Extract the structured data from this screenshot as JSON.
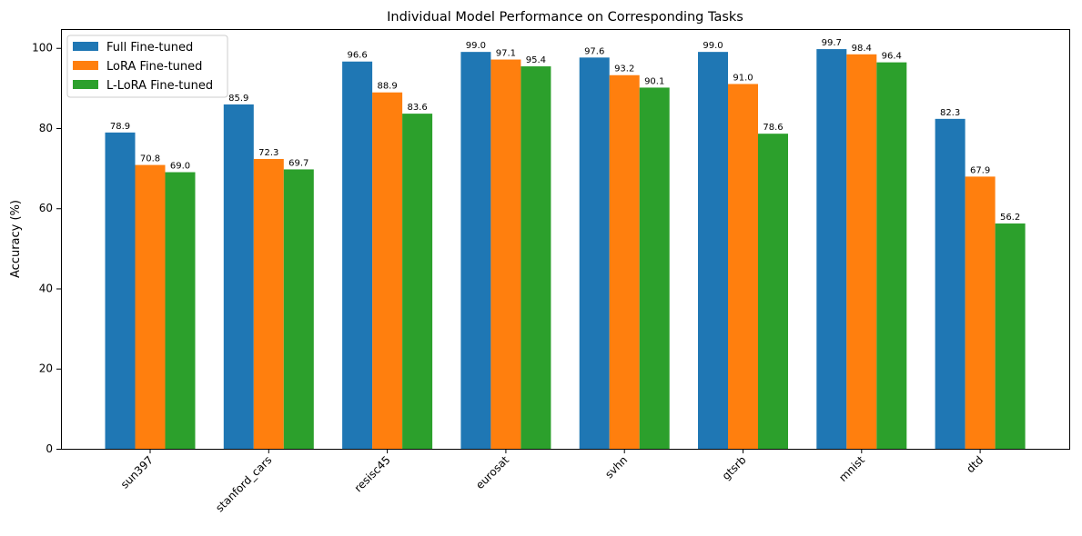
{
  "chart_data": {
    "type": "bar",
    "title": "Individual Model Performance on Corresponding Tasks",
    "xlabel": "",
    "ylabel": "Accuracy (%)",
    "ylim": [
      0,
      104.7
    ],
    "yticks": [
      0,
      20,
      40,
      60,
      80,
      100
    ],
    "grid": false,
    "legend_position": "top-left",
    "categories": [
      "sun397",
      "stanford_cars",
      "resisc45",
      "eurosat",
      "svhn",
      "gtsrb",
      "mnist",
      "dtd"
    ],
    "series": [
      {
        "name": "Full Fine-tuned",
        "color": "#1f77b4",
        "values": [
          78.9,
          85.9,
          96.6,
          99.0,
          97.6,
          99.0,
          99.7,
          82.3
        ]
      },
      {
        "name": "LoRA Fine-tuned",
        "color": "#ff7f0e",
        "values": [
          70.8,
          72.3,
          88.9,
          97.1,
          93.2,
          91.0,
          98.4,
          67.9
        ]
      },
      {
        "name": "L-LoRA Fine-tuned",
        "color": "#2ca02c",
        "values": [
          69.0,
          69.7,
          83.6,
          95.4,
          90.1,
          78.6,
          96.4,
          56.2
        ]
      }
    ]
  }
}
